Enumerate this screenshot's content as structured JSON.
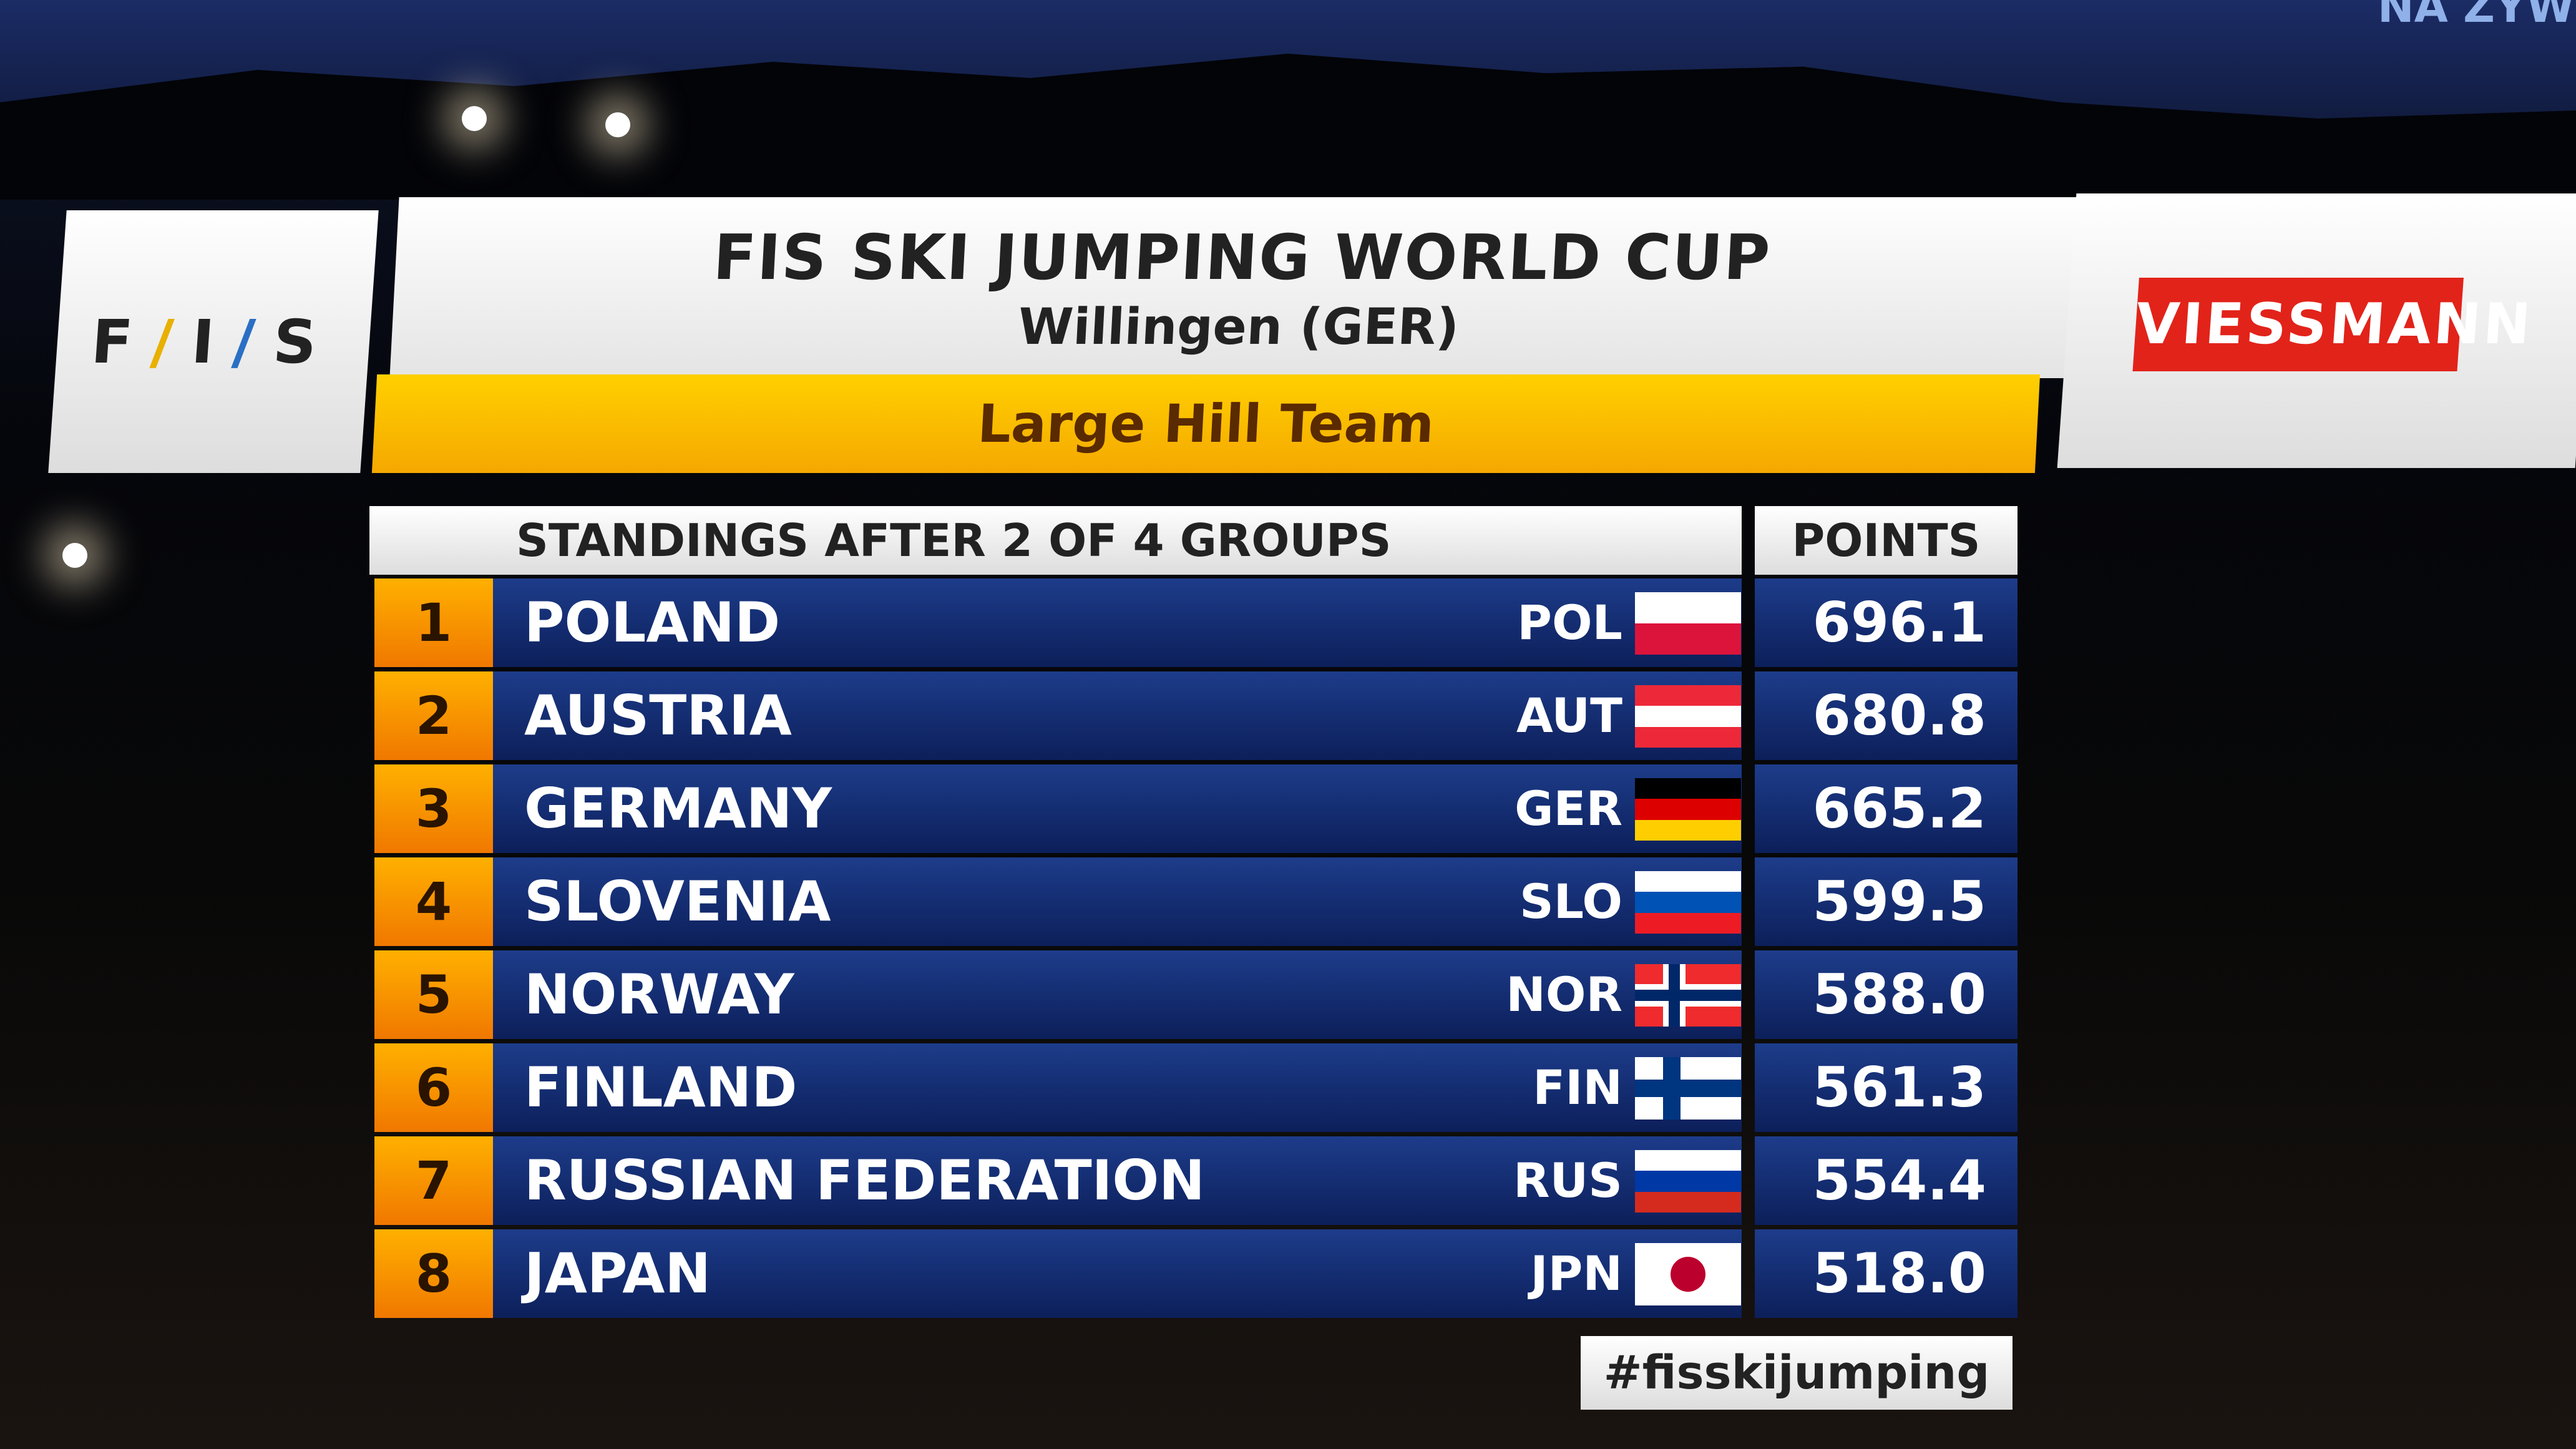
{
  "overlay": {
    "live_text": "NA ŻYWO"
  },
  "logo": {
    "fis": "FIS",
    "sponsor": "VIESSMANN"
  },
  "header": {
    "title": "FIS SKI JUMPING WORLD CUP",
    "location": "Willingen (GER)",
    "event": "Large Hill Team"
  },
  "table": {
    "standings_label": "STANDINGS AFTER 2 OF 4 GROUPS",
    "points_label": "POINTS",
    "rows": [
      {
        "rank": "1",
        "name": "POLAND",
        "code": "POL",
        "points": "696.1",
        "flag": "pol"
      },
      {
        "rank": "2",
        "name": "AUSTRIA",
        "code": "AUT",
        "points": "680.8",
        "flag": "aut"
      },
      {
        "rank": "3",
        "name": "GERMANY",
        "code": "GER",
        "points": "665.2",
        "flag": "ger"
      },
      {
        "rank": "4",
        "name": "SLOVENIA",
        "code": "SLO",
        "points": "599.5",
        "flag": "slo"
      },
      {
        "rank": "5",
        "name": "NORWAY",
        "code": "NOR",
        "points": "588.0",
        "flag": "nor"
      },
      {
        "rank": "6",
        "name": "FINLAND",
        "code": "FIN",
        "points": "561.3",
        "flag": "fin"
      },
      {
        "rank": "7",
        "name": "RUSSIAN FEDERATION",
        "code": "RUS",
        "points": "554.4",
        "flag": "rus"
      },
      {
        "rank": "8",
        "name": "JAPAN",
        "code": "JPN",
        "points": "518.0",
        "flag": "jpn"
      }
    ]
  },
  "hashtag": "#fisskijumping",
  "colors": {
    "accent_orange": "#f5a800",
    "row_blue": "#0c1f5a",
    "sponsor_red": "#e2231a"
  }
}
